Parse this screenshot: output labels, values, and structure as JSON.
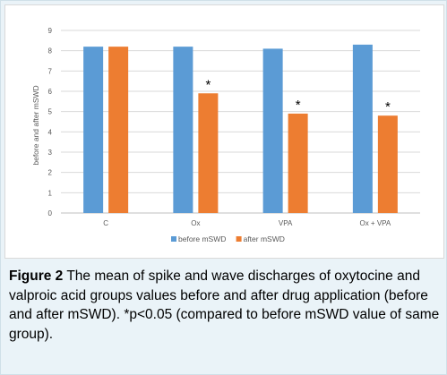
{
  "chart_data": {
    "type": "bar",
    "categories": [
      "C",
      "Ox",
      "VPA",
      "Ox + VPA"
    ],
    "series": [
      {
        "name": "before mSWD",
        "values": [
          8.2,
          8.2,
          8.1,
          8.3
        ],
        "color": "#5b9bd5"
      },
      {
        "name": "after mSWD",
        "values": [
          8.2,
          5.9,
          4.9,
          4.8
        ],
        "color": "#ed7d31"
      }
    ],
    "annotations": [
      "",
      "*",
      "*",
      "*"
    ],
    "ylabel": "before and after mSWD",
    "ylim": [
      0,
      9
    ],
    "yticks": [
      "0",
      "1",
      "2",
      "3",
      "4",
      "5",
      "6",
      "7",
      "8",
      "9"
    ],
    "grid": true,
    "legend_position": "bottom"
  },
  "caption": {
    "label": "Figure 2",
    "text": " The mean of spike and wave discharges of oxytocine and valproic acid groups values before and after drug application (before and after mSWD). *p<0.05 (compared to before mSWD value of same group)."
  }
}
